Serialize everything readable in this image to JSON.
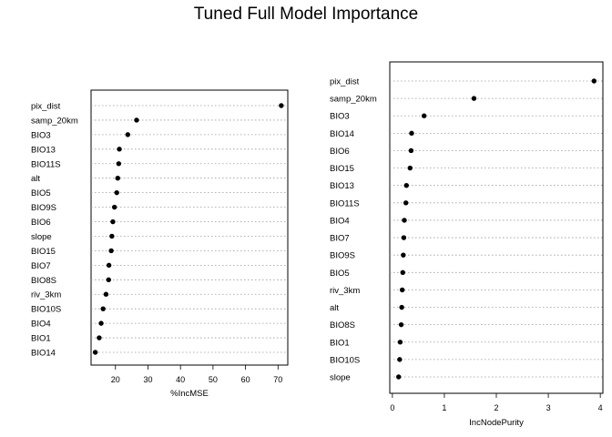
{
  "title": "Tuned Full Model Importance",
  "chart_data": [
    {
      "type": "scatter",
      "xlabel": "%IncMSE",
      "xlim": [
        12.5,
        73
      ],
      "xticks": [
        20,
        30,
        40,
        50,
        60,
        70
      ],
      "grid": "dotted horizontal guides",
      "categories": [
        "pix_dist",
        "samp_20km",
        "BIO3",
        "BIO13",
        "BIO11S",
        "alt",
        "BIO5",
        "BIO9S",
        "BIO6",
        "slope",
        "BIO15",
        "BIO7",
        "BIO8S",
        "riv_3km",
        "BIO10S",
        "BIO4",
        "BIO1",
        "BIO14"
      ],
      "values": [
        71.0,
        26.5,
        23.8,
        21.2,
        21.0,
        20.7,
        20.4,
        19.7,
        19.2,
        18.9,
        18.7,
        18.0,
        17.9,
        17.1,
        16.2,
        15.6,
        15.0,
        13.8
      ]
    },
    {
      "type": "scatter",
      "xlabel": "IncNodePurity",
      "xlim": [
        -0.05,
        4.05
      ],
      "xticks": [
        0,
        1,
        2,
        3,
        4
      ],
      "grid": "dotted horizontal guides",
      "categories": [
        "pix_dist",
        "samp_20km",
        "BIO3",
        "BIO14",
        "BIO6",
        "BIO15",
        "BIO13",
        "BIO11S",
        "BIO4",
        "BIO7",
        "BIO9S",
        "BIO5",
        "riv_3km",
        "alt",
        "BIO8S",
        "BIO1",
        "BIO10S",
        "slope"
      ],
      "values": [
        3.88,
        1.57,
        0.61,
        0.37,
        0.36,
        0.34,
        0.27,
        0.26,
        0.23,
        0.22,
        0.21,
        0.2,
        0.19,
        0.18,
        0.17,
        0.15,
        0.14,
        0.12
      ]
    }
  ]
}
